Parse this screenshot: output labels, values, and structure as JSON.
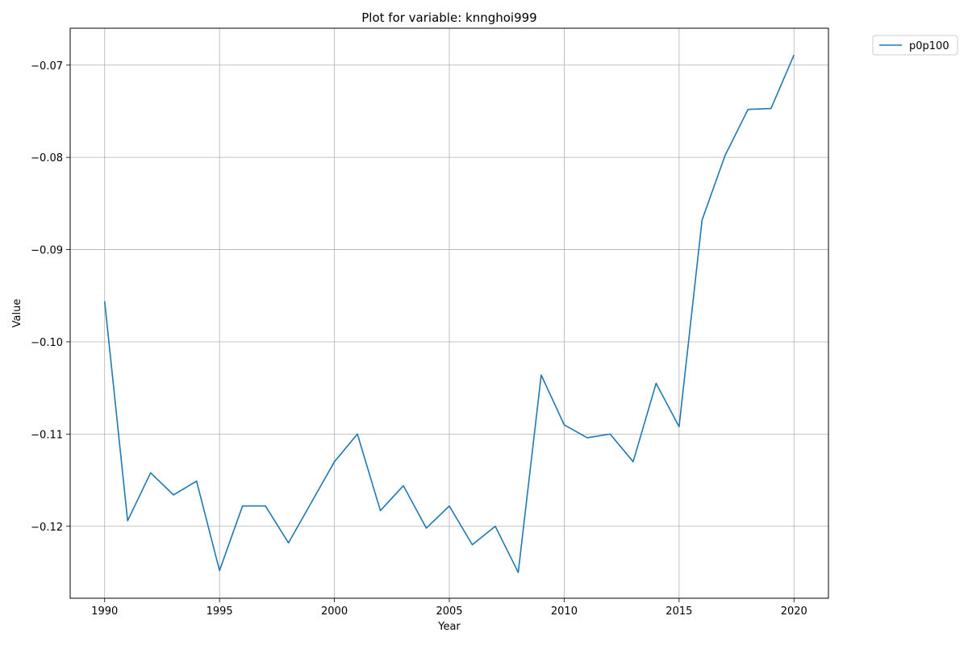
{
  "chart_data": {
    "type": "line",
    "title": "Plot for variable: knnghoi999",
    "xlabel": "Year",
    "ylabel": "Value",
    "xlim": [
      1988.5,
      2021.5
    ],
    "ylim": [
      -0.1278,
      -0.066
    ],
    "xticks": [
      1990,
      1995,
      2000,
      2005,
      2010,
      2015,
      2020
    ],
    "xtick_labels": [
      "1990",
      "1995",
      "2000",
      "2005",
      "2010",
      "2015",
      "2020"
    ],
    "yticks": [
      -0.07,
      -0.08,
      -0.09,
      -0.1,
      -0.11,
      -0.12
    ],
    "ytick_labels": [
      "−0.07",
      "−0.08",
      "−0.09",
      "−0.10",
      "−0.11",
      "−0.12"
    ],
    "grid": true,
    "legend_position": "outside-top-right",
    "series": [
      {
        "name": "p0p100",
        "color": "#1f77b4",
        "x": [
          1990,
          1991,
          1992,
          1993,
          1994,
          1995,
          1996,
          1997,
          1998,
          1999,
          2000,
          2001,
          2002,
          2003,
          2004,
          2005,
          2006,
          2007,
          2008,
          2009,
          2010,
          2011,
          2012,
          2013,
          2014,
          2015,
          2016,
          2017,
          2018,
          2019,
          2020
        ],
        "y": [
          -0.0956,
          -0.1194,
          -0.1142,
          -0.1166,
          -0.1151,
          -0.1248,
          -0.1178,
          -0.1178,
          -0.1218,
          -0.1174,
          -0.113,
          -0.11,
          -0.1183,
          -0.1156,
          -0.1202,
          -0.1178,
          -0.122,
          -0.12,
          -0.125,
          -0.1036,
          -0.109,
          -0.1104,
          -0.11,
          -0.113,
          -0.1045,
          -0.1092,
          -0.0868,
          -0.0798,
          -0.0748,
          -0.0747,
          -0.0689
        ]
      }
    ]
  }
}
